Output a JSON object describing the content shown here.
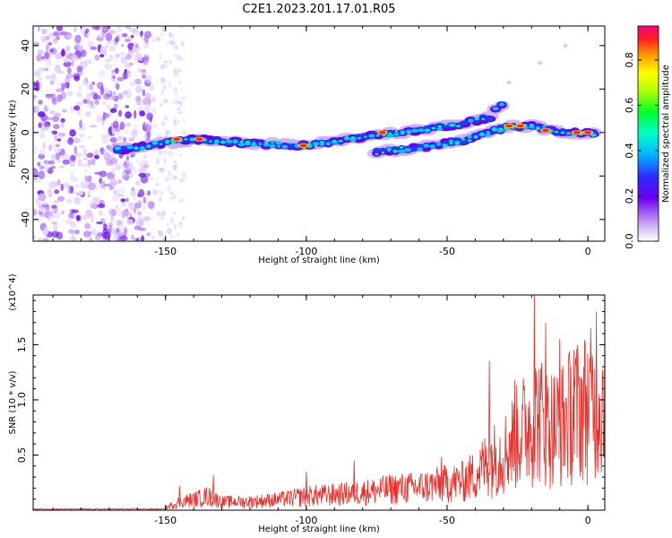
{
  "title": "C2E1.2023.201.17.01.R05",
  "chart_data": [
    {
      "type": "heatmap",
      "xlabel": "Height of straight line (km)",
      "ylabel": "Frequency (Hz)",
      "xlim": [
        -197,
        6
      ],
      "ylim": [
        -50,
        49
      ],
      "xticks": [
        "-150",
        "-100",
        "-50",
        "0"
      ],
      "yticks": [
        "-40",
        "-20",
        "0",
        "20",
        "40"
      ],
      "ridges": [
        {
          "x": [
            -167,
            -150,
            -140,
            -120,
            -100,
            -80,
            -60,
            -45,
            -35,
            -30
          ],
          "y": [
            -8,
            -5,
            -3,
            -5,
            -6,
            -2,
            1,
            4,
            7,
            14
          ]
        },
        {
          "x": [
            -75,
            -60,
            -45,
            -35,
            -28,
            -20,
            -10,
            0,
            4
          ],
          "y": [
            -9,
            -7,
            -4,
            0,
            3,
            3,
            0,
            0,
            -1
          ]
        }
      ],
      "colorbar": {
        "label": "Normalized spectral amplitude",
        "range": [
          0,
          0.95
        ],
        "ticks": [
          "0.0",
          "0.2",
          "0.4",
          "0.6",
          "0.8"
        ]
      }
    },
    {
      "type": "line",
      "xlabel": "Height of straight line (km)",
      "ylabel": "SNR (10 * v/v)",
      "yscale_label": "(x10^4)",
      "xlim": [
        -197,
        6
      ],
      "ylim": [
        0,
        1.95
      ],
      "xticks": [
        "-150",
        "-100",
        "-50",
        "0"
      ],
      "yticks": [
        "0.5",
        "1.0",
        "1.5"
      ],
      "color": "#e8302a",
      "envelope": {
        "x": [
          -197,
          -160,
          -150,
          -145,
          -140,
          -135,
          -130,
          -120,
          -110,
          -100,
          -90,
          -80,
          -70,
          -60,
          -50,
          -45,
          -40,
          -35,
          -30,
          -25,
          -20,
          -18,
          -15,
          -10,
          -5,
          0,
          4,
          6
        ],
        "y": [
          0.01,
          0.01,
          0.03,
          0.12,
          0.15,
          0.2,
          0.12,
          0.12,
          0.15,
          0.2,
          0.22,
          0.25,
          0.3,
          0.32,
          0.38,
          0.4,
          0.5,
          0.7,
          0.8,
          1.05,
          1.25,
          1.35,
          1.2,
          1.2,
          1.4,
          1.5,
          1.55,
          1.45
        ]
      },
      "spikes": [
        {
          "x": -145,
          "y": 0.22
        },
        {
          "x": -133,
          "y": 0.32
        },
        {
          "x": -100,
          "y": 0.35
        },
        {
          "x": -83,
          "y": 0.45
        },
        {
          "x": -52,
          "y": 0.48
        },
        {
          "x": -35,
          "y": 1.35
        },
        {
          "x": -26,
          "y": 1.18
        },
        {
          "x": -19,
          "y": 1.95
        },
        {
          "x": -15,
          "y": 1.7
        },
        {
          "x": -10,
          "y": 1.55
        },
        {
          "x": -5,
          "y": 1.45
        },
        {
          "x": 3,
          "y": 1.8
        },
        {
          "x": 6,
          "y": 1.6
        }
      ]
    }
  ]
}
